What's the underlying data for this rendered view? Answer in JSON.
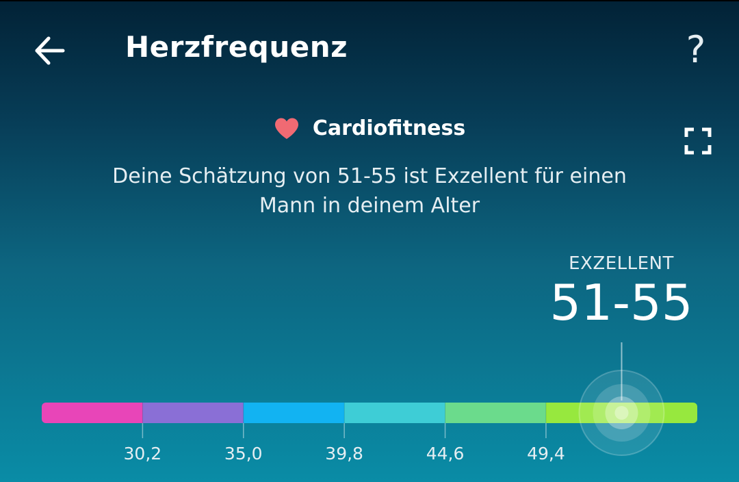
{
  "header": {
    "title": "Herzfrequenz",
    "help_icon": "?",
    "back_icon_name": "arrow-left-icon"
  },
  "section": {
    "title": "Cardiofitness",
    "heart_color": "#f06a73",
    "expand_icon_name": "fullscreen-icon"
  },
  "summary": "Deine Schätzung von 51-55 ist Exzellent für einen Mann in deinem Alter",
  "rating": {
    "label": "EXZELLENT",
    "value": "51-55",
    "marker_min": 51,
    "marker_max": 55
  },
  "scale": {
    "min": 25.4,
    "max": 56.6,
    "thresholds": [
      "30,2",
      "35,0",
      "39,8",
      "44,6",
      "49,4"
    ],
    "threshold_values": [
      30.2,
      35.0,
      39.8,
      44.6,
      49.4
    ],
    "segments": [
      {
        "color": "#e845b8"
      },
      {
        "color": "#8a6fd6"
      },
      {
        "color": "#12b3f2"
      },
      {
        "color": "#3ecdd6"
      },
      {
        "color": "#6bdb8c"
      },
      {
        "color": "#97e83e"
      }
    ]
  }
}
